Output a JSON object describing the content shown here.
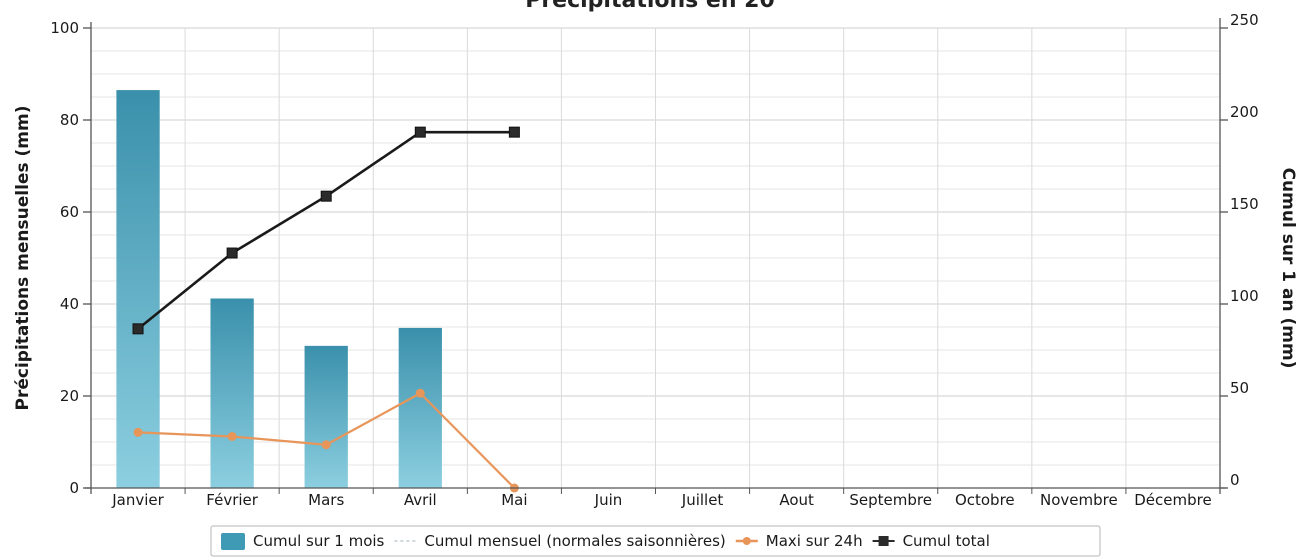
{
  "chart_data": {
    "type": "bar",
    "title": "Précipitations en 20",
    "categories": [
      "Janvier",
      "Février",
      "Mars",
      "Avril",
      "Mai",
      "Juin",
      "Juillet",
      "Aout",
      "Septembre",
      "Octobre",
      "Novembre",
      "Décembre"
    ],
    "left_axis": {
      "label": "Précipitations mensuelles (mm)",
      "ylim": [
        0,
        100
      ],
      "ticks": [
        0,
        20,
        40,
        60,
        80,
        100
      ]
    },
    "right_axis": {
      "label": "Cumul sur 1 an (mm)",
      "ylim": [
        0,
        250
      ],
      "ticks": [
        0,
        50,
        100,
        150,
        200,
        250
      ]
    },
    "grid": true,
    "legend_position": "bottom",
    "series": [
      {
        "name": "Cumul sur 1 mois",
        "type": "bar",
        "axis": "left",
        "color": "#3f9bb5",
        "values": [
          86.5,
          41.2,
          30.9,
          34.8,
          null,
          null,
          null,
          null,
          null,
          null,
          null,
          null
        ]
      },
      {
        "name": "Cumul mensuel (normales saisonnières)",
        "type": "line",
        "axis": "left",
        "color": "#cfd8dc",
        "values": [
          null,
          null,
          null,
          null,
          null,
          null,
          null,
          null,
          null,
          null,
          null,
          null
        ]
      },
      {
        "name": "Maxi sur 24h",
        "type": "line",
        "axis": "left",
        "color": "#e8955a",
        "values": [
          12.1,
          11.2,
          9.4,
          20.6,
          0.0,
          null,
          null,
          null,
          null,
          null,
          null,
          null
        ]
      },
      {
        "name": "Cumul total",
        "type": "line",
        "axis": "right",
        "color": "#1a1a1a",
        "values": [
          86.5,
          127.7,
          158.6,
          193.4,
          193.4,
          null,
          null,
          null,
          null,
          null,
          null,
          null
        ]
      }
    ]
  }
}
